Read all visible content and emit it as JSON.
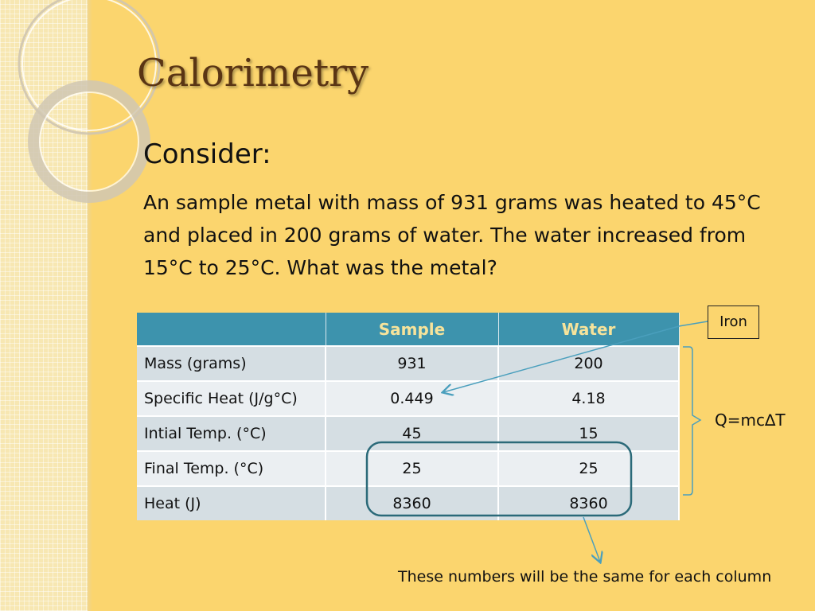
{
  "slide": {
    "title": "Calorimetry",
    "subheading": "Consider:",
    "problem": "An sample metal with mass of 931 grams was heated to 45°C and placed in 200 grams of water. The water increased from 15°C to 25°C. What was the metal?"
  },
  "table": {
    "headers": [
      "",
      "Sample",
      "Water"
    ],
    "rows": [
      {
        "label": "Mass (grams)",
        "sample": "931",
        "water": "200"
      },
      {
        "label": "Specific Heat (J/g°C)",
        "sample": "0.449",
        "water": "4.18"
      },
      {
        "label": "Intial Temp. (°C)",
        "sample": "45",
        "water": "15"
      },
      {
        "label": "Final Temp. (°C)",
        "sample": "25",
        "water": "25"
      },
      {
        "label": "Heat (J)",
        "sample": "8360",
        "water": "8360"
      }
    ]
  },
  "annotations": {
    "answer": "Iron",
    "formula": "Q=mc∆T",
    "note": "These numbers will be the same for each column"
  },
  "colors": {
    "background": "#fbd56e",
    "title": "#5a3514",
    "header_fill": "#3d93ad",
    "header_text": "#f6e39b",
    "highlight_outline": "#2b6a79",
    "arrow": "#4a9fbd"
  }
}
